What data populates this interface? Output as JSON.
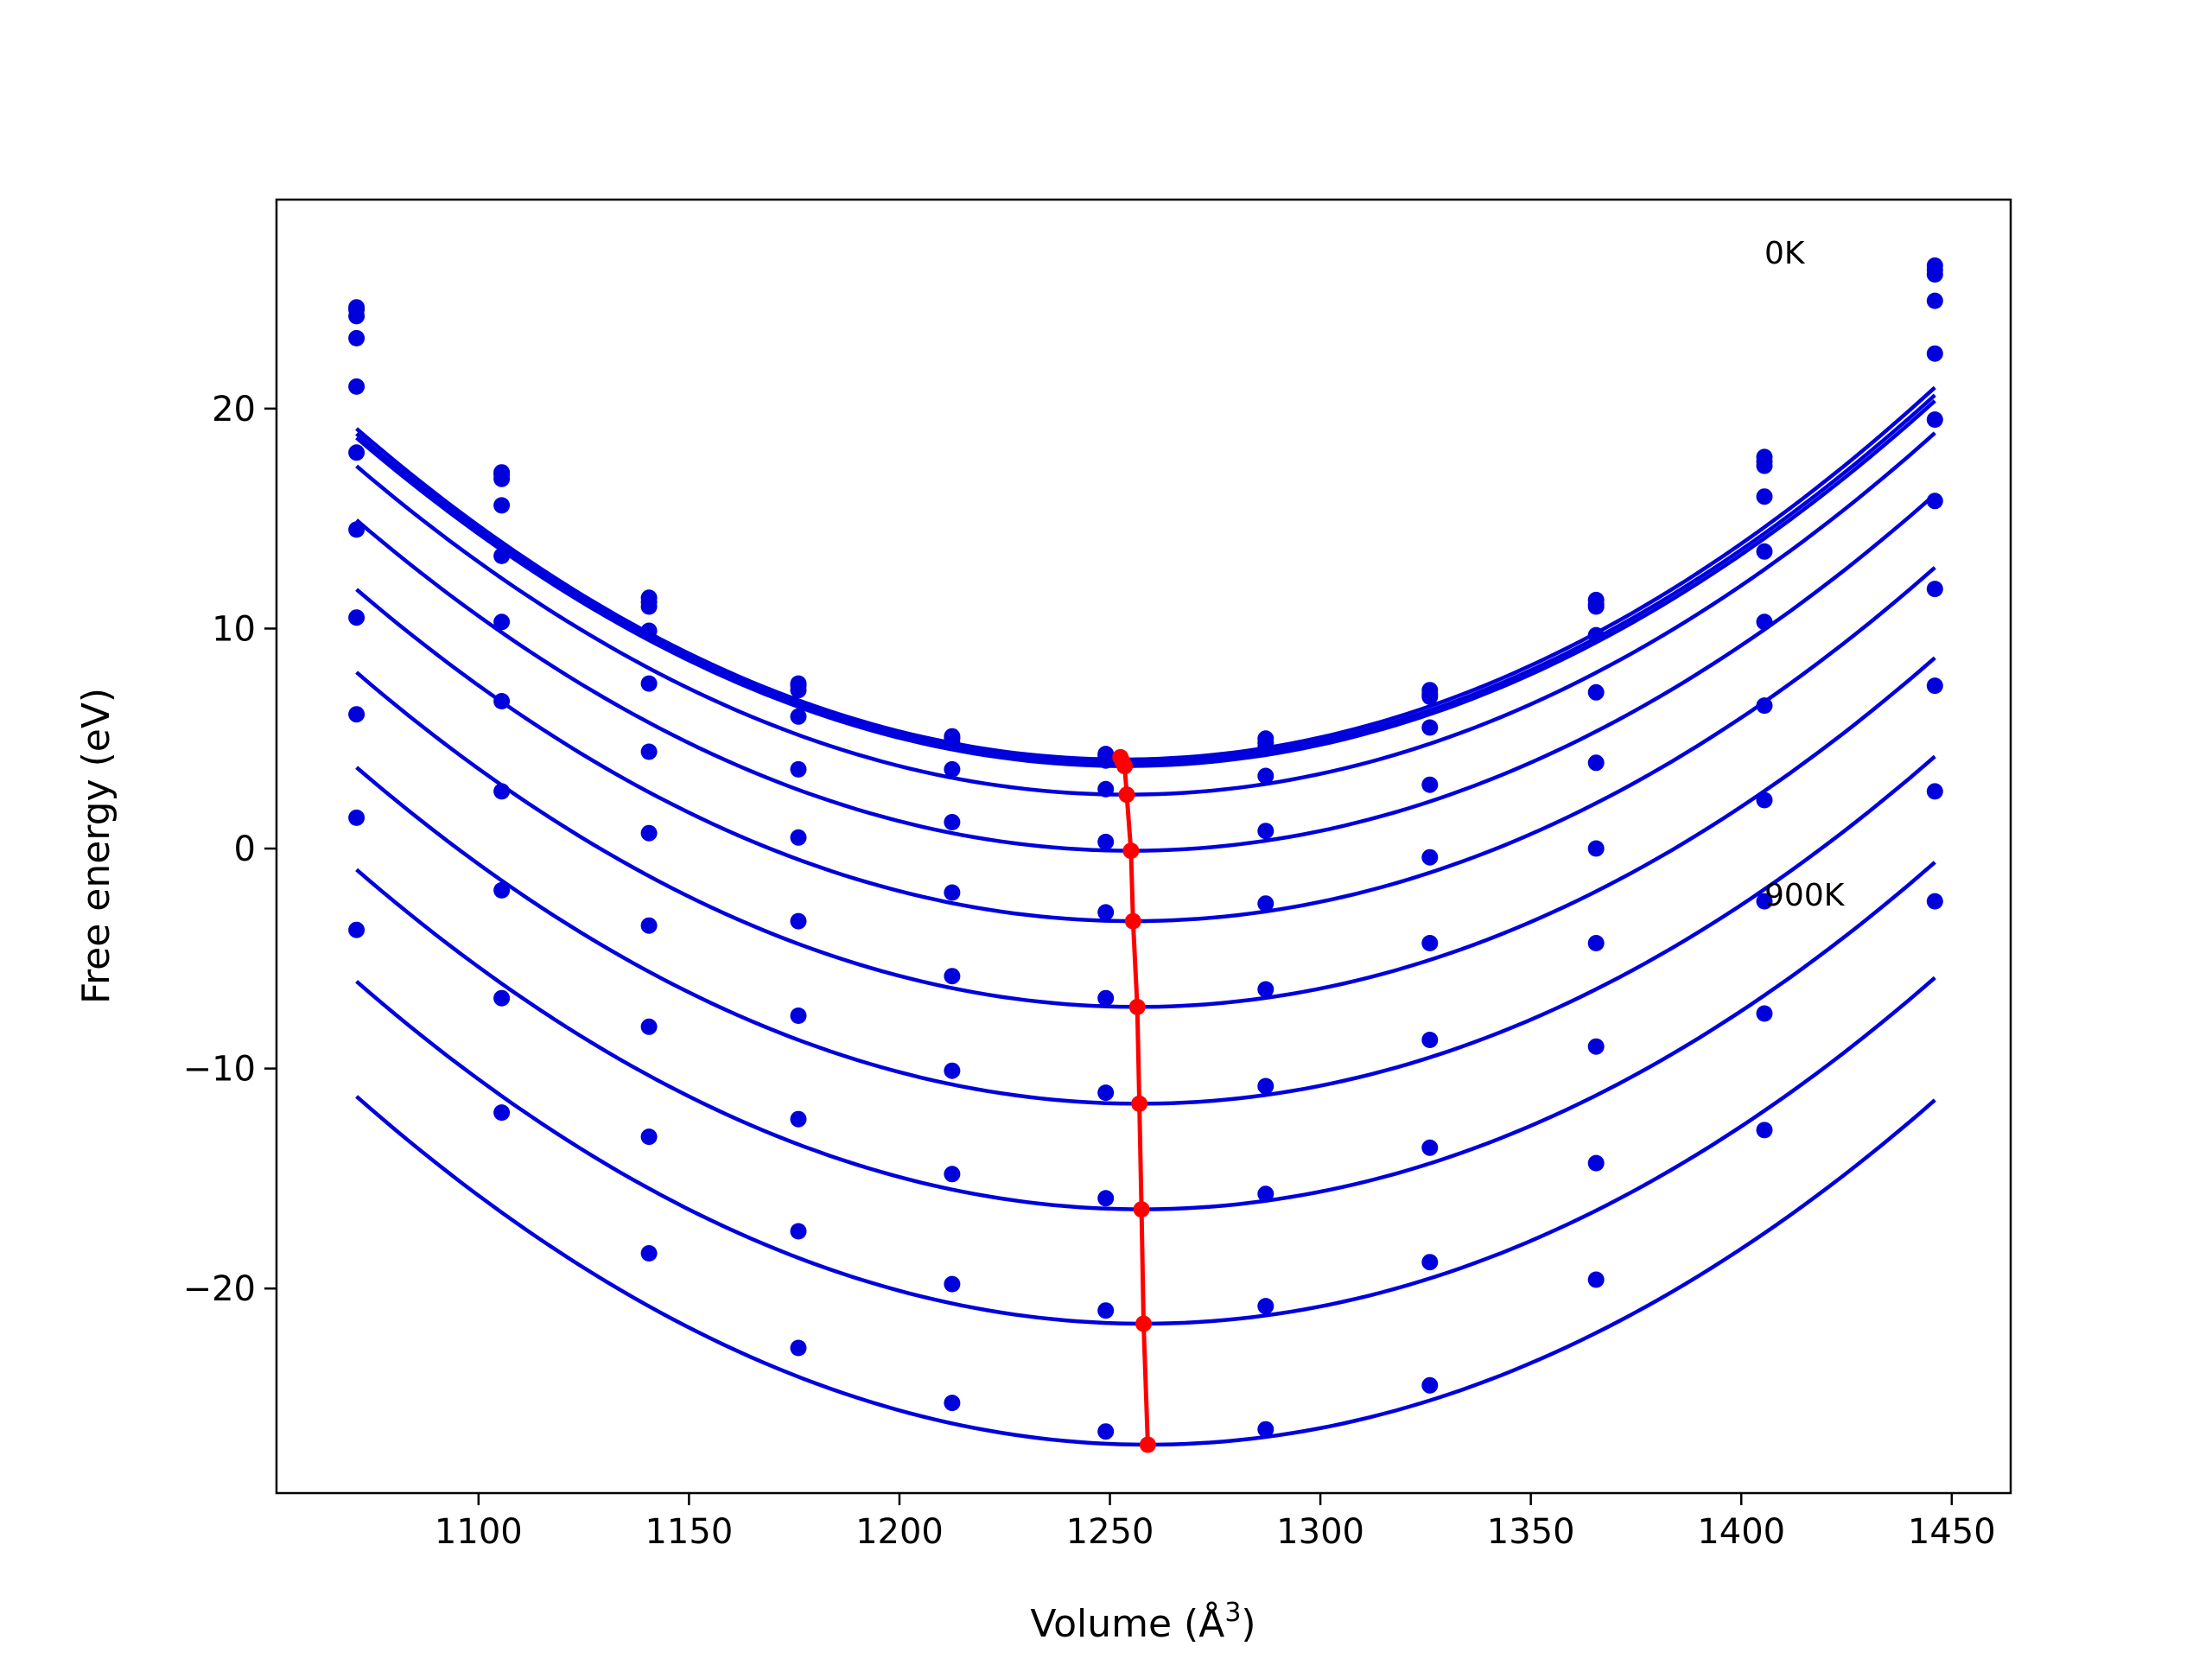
{
  "chart_data": {
    "type": "scatter",
    "title": "",
    "xlabel": "Volume (Å",
    "xlabel_sup": "3",
    "xlabel_close": ")",
    "ylabel": "Free energy (eV)",
    "xlim": [
      1052,
      1464
    ],
    "ylim": [
      -29.3,
      29.5
    ],
    "xticks": [
      1100,
      1150,
      1200,
      1250,
      1300,
      1350,
      1400,
      1450
    ],
    "yticks": [
      -20,
      -10,
      0,
      10,
      20
    ],
    "ytick_labels": [
      "−20",
      "−10",
      "0",
      "10",
      "20"
    ],
    "grid": false,
    "legend": "none",
    "series_color": "#0000dd",
    "minima_color": "#ff0000",
    "volumes": [
      1071,
      1105.5,
      1140.5,
      1176,
      1212.5,
      1249,
      1287,
      1326,
      1365.5,
      1405.5,
      1446
    ],
    "annotations": [
      {
        "text": "0K",
        "x": 1405.5,
        "y": 26.6
      },
      {
        "text": "900K",
        "x": 1405.5,
        "y": -2.6
      }
    ],
    "series": [
      {
        "values": [
          24.6,
          17.1,
          11.4,
          7.5,
          5.1,
          4.3,
          5.0,
          7.2,
          11.3,
          17.8,
          26.5
        ],
        "fit": {
          "a": 0.000454,
          "v0": 1253.0,
          "c": 4.05
        }
      },
      {
        "values": [
          24.5,
          17.0,
          11.2,
          7.4,
          5.0,
          4.2,
          4.8,
          7.0,
          11.1,
          17.6,
          26.3
        ],
        "fit": {
          "a": 0.00045,
          "v0": 1253.3,
          "c": 3.9
        }
      },
      {
        "values": [
          24.2,
          16.8,
          11.0,
          7.2,
          4.8,
          4.0,
          4.6,
          6.9,
          11.0,
          17.4,
          26.1
        ],
        "fit": {
          "a": 0.000448,
          "v0": 1253.5,
          "c": 3.75
        }
      },
      {
        "values": [
          23.2,
          15.6,
          9.9,
          6.0,
          3.6,
          2.7,
          3.3,
          5.5,
          9.7,
          16.0,
          24.9
        ],
        "fit": {
          "a": 0.000446,
          "v0": 1254.0,
          "c": 2.45
        }
      },
      {
        "values": [
          21.0,
          13.3,
          7.5,
          3.6,
          1.2,
          0.3,
          0.8,
          2.9,
          7.1,
          13.5,
          22.5
        ],
        "fit": {
          "a": 0.000444,
          "v0": 1255.0,
          "c": -0.1
        }
      },
      {
        "values": [
          18.0,
          10.3,
          4.4,
          0.5,
          -2.0,
          -2.9,
          -2.5,
          -0.4,
          3.9,
          10.3,
          19.5
        ],
        "fit": {
          "a": 0.000443,
          "v0": 1255.5,
          "c": -3.3
        }
      },
      {
        "values": [
          14.5,
          6.7,
          0.7,
          -3.3,
          -5.8,
          -6.8,
          -6.4,
          -4.3,
          0.0,
          6.5,
          15.8
        ],
        "fit": {
          "a": 0.000442,
          "v0": 1256.5,
          "c": -7.2
        }
      },
      {
        "values": [
          10.5,
          2.6,
          -3.5,
          -7.6,
          -10.1,
          -11.1,
          -10.8,
          -8.7,
          -4.3,
          2.2,
          11.8
        ],
        "fit": {
          "a": 0.000442,
          "v0": 1257.0,
          "c": -11.6
        }
      },
      {
        "values": [
          6.1,
          -1.9,
          -8.1,
          -12.3,
          -14.8,
          -15.9,
          -15.7,
          -13.6,
          -9.0,
          -2.4,
          7.4
        ],
        "fit": {
          "a": 0.000444,
          "v0": 1257.5,
          "c": -16.4
        }
      },
      {
        "values": [
          1.4,
          -6.8,
          -13.1,
          -17.4,
          -19.8,
          -21.0,
          -20.8,
          -18.8,
          -14.3,
          -7.5,
          2.6
        ],
        "fit": {
          "a": 0.000445,
          "v0": 1258.0,
          "c": -21.6
        }
      },
      {
        "values": [
          -3.7,
          -12.0,
          -18.4,
          -22.7,
          -25.2,
          -26.5,
          -26.4,
          -24.4,
          -19.6,
          -12.8,
          -2.4
        ],
        "fit": {
          "a": 0.000448,
          "v0": 1259.0,
          "c": -27.1
        }
      }
    ],
    "minima": {
      "x": [
        1252.5,
        1253.0,
        1253.5,
        1254.0,
        1255.0,
        1255.5,
        1256.5,
        1257.0,
        1257.5,
        1258.0,
        1259.0
      ],
      "y": [
        4.15,
        3.95,
        3.75,
        2.45,
        -0.1,
        -3.3,
        -7.2,
        -11.6,
        -16.4,
        -21.6,
        -27.1
      ]
    }
  }
}
